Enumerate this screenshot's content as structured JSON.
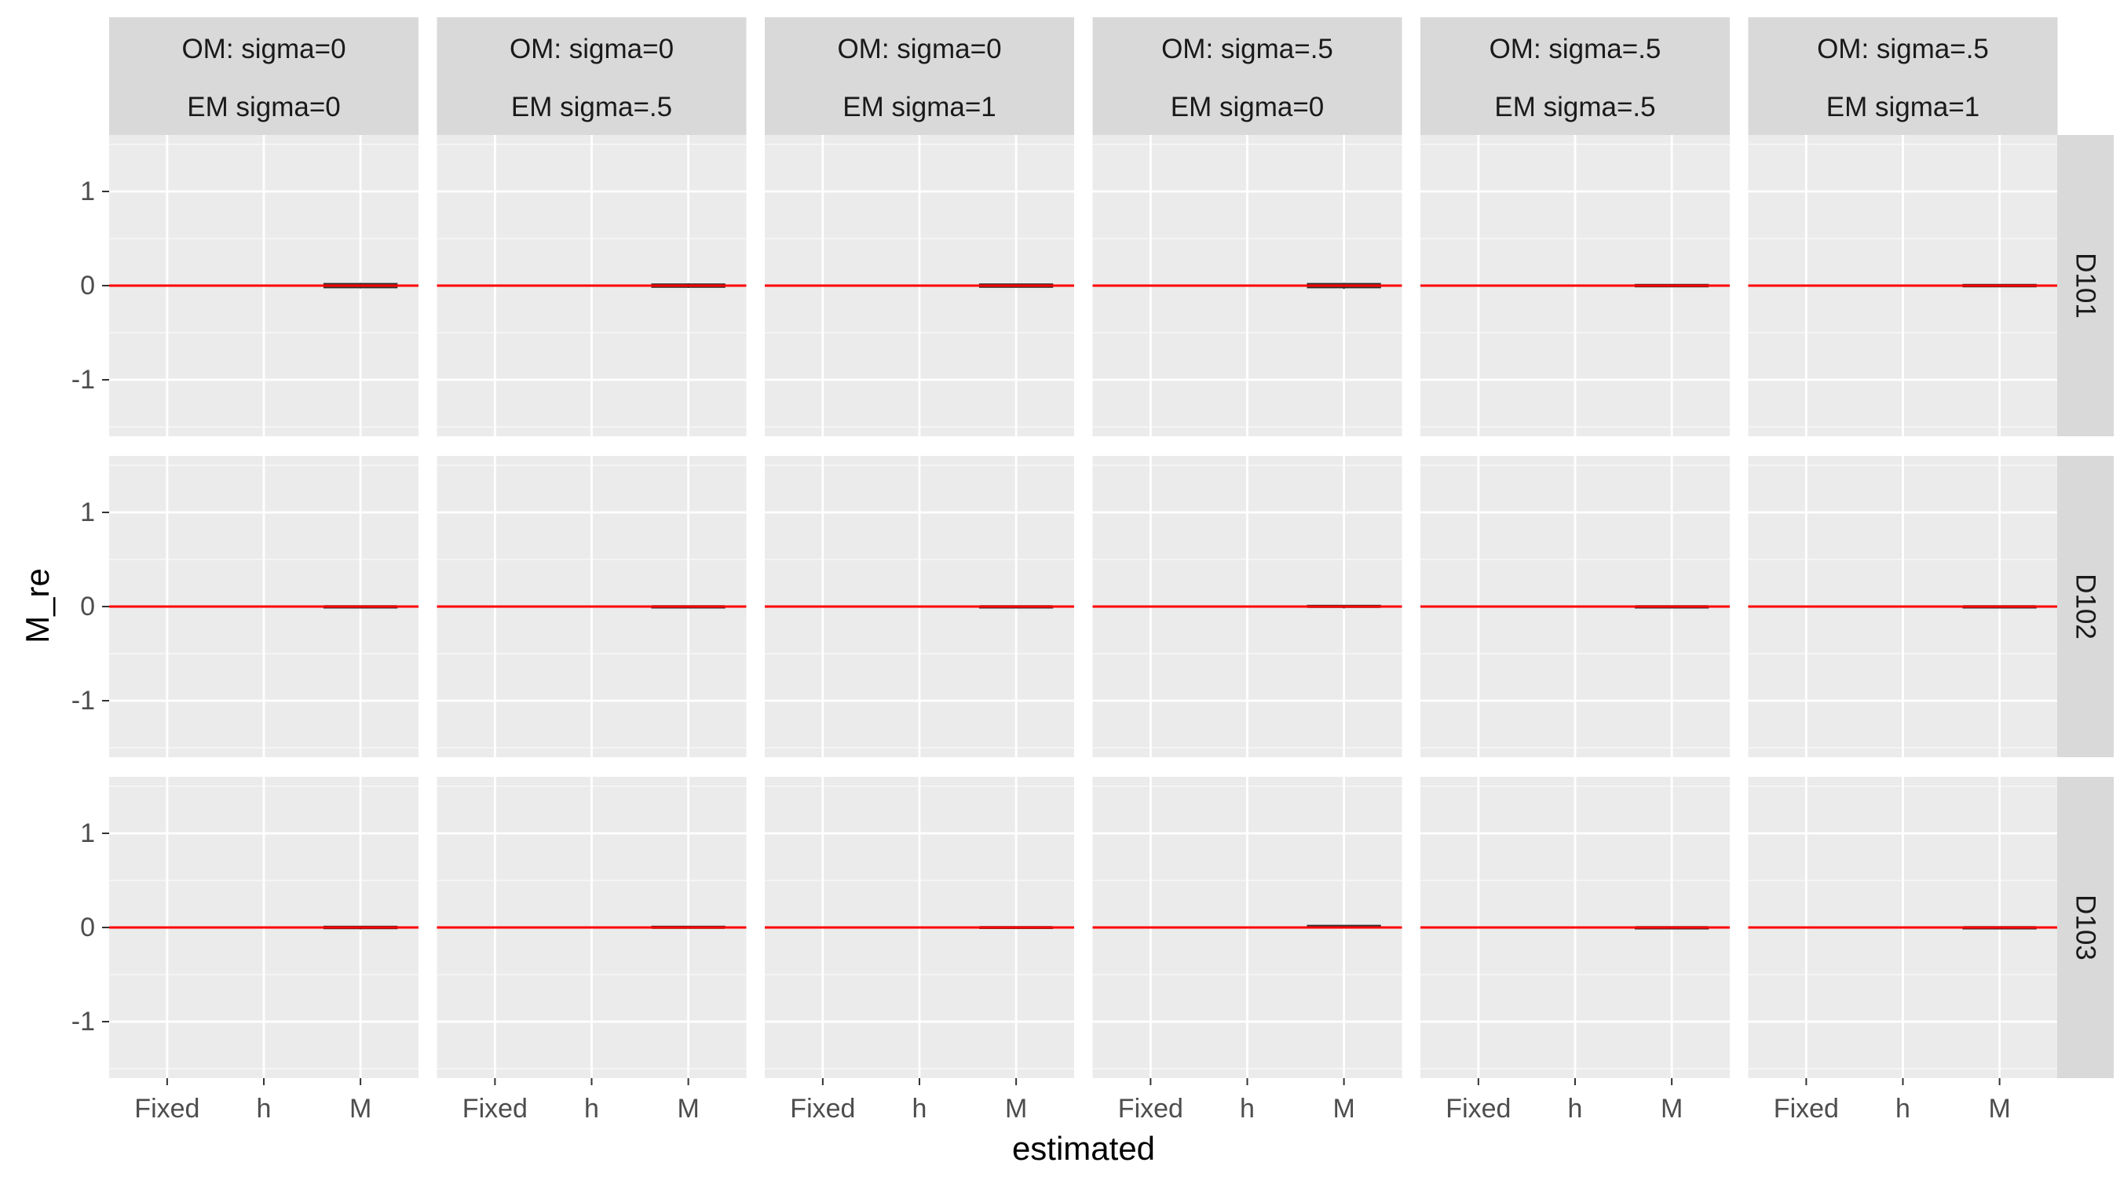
{
  "chart_data": {
    "type": "boxplot",
    "xlabel": "estimated",
    "ylabel": "M_re",
    "x_categories": [
      "Fixed",
      "h",
      "M"
    ],
    "y_ticks": [
      -1,
      0,
      1
    ],
    "ylim": [
      -1.6,
      1.6
    ],
    "reference_line": {
      "y": 0,
      "color": "#ff0000"
    },
    "facet_columns": [
      {
        "om": "OM: sigma=0",
        "em": "EM sigma=0"
      },
      {
        "om": "OM: sigma=0",
        "em": "EM sigma=.5"
      },
      {
        "om": "OM: sigma=0",
        "em": "EM sigma=1"
      },
      {
        "om": "OM: sigma=.5",
        "em": "EM sigma=0"
      },
      {
        "om": "OM: sigma=.5",
        "em": "EM sigma=.5"
      },
      {
        "om": "OM: sigma=.5",
        "em": "EM sigma=1"
      }
    ],
    "facet_rows": [
      "D101",
      "D102",
      "D103"
    ],
    "boxes": [
      [
        {
          "category": "M",
          "q1": -0.02,
          "median": 0.0,
          "q3": 0.02,
          "whisker_low": -0.03,
          "whisker_high": 0.03
        },
        {
          "category": "M",
          "q1": -0.015,
          "median": 0.0,
          "q3": 0.015,
          "whisker_low": -0.025,
          "whisker_high": 0.025
        },
        {
          "category": "M",
          "q1": -0.015,
          "median": 0.0,
          "q3": 0.015,
          "whisker_low": -0.02,
          "whisker_high": 0.02
        },
        {
          "category": "M",
          "q1": -0.02,
          "median": 0.0,
          "q3": 0.02,
          "whisker_low": -0.035,
          "whisker_high": 0.03
        },
        {
          "category": "M",
          "q1": -0.01,
          "median": 0.0,
          "q3": 0.01,
          "whisker_low": -0.015,
          "whisker_high": 0.015
        },
        {
          "category": "M",
          "q1": -0.01,
          "median": 0.0,
          "q3": 0.01,
          "whisker_low": -0.015,
          "whisker_high": 0.015
        }
      ],
      [
        {
          "category": "M",
          "q1": -0.01,
          "median": 0.0,
          "q3": 0.0,
          "whisker_low": -0.02,
          "whisker_high": 0.005
        },
        {
          "category": "M",
          "q1": -0.005,
          "median": 0.0,
          "q3": 0.0,
          "whisker_low": -0.01,
          "whisker_high": 0.005
        },
        {
          "category": "M",
          "q1": -0.005,
          "median": 0.0,
          "q3": 0.0,
          "whisker_low": -0.01,
          "whisker_high": 0.005
        },
        {
          "category": "M",
          "q1": -0.005,
          "median": 0.0,
          "q3": 0.01,
          "whisker_low": -0.02,
          "whisker_high": 0.01
        },
        {
          "category": "M",
          "q1": -0.005,
          "median": 0.0,
          "q3": 0.0,
          "whisker_low": -0.01,
          "whisker_high": 0.005
        },
        {
          "category": "M",
          "q1": -0.005,
          "median": 0.0,
          "q3": 0.0,
          "whisker_low": -0.01,
          "whisker_high": 0.005
        }
      ],
      [
        {
          "category": "M",
          "q1": -0.01,
          "median": 0.0,
          "q3": 0.01,
          "whisker_low": -0.02,
          "whisker_high": 0.01
        },
        {
          "category": "M",
          "q1": -0.005,
          "median": 0.0,
          "q3": 0.01,
          "whisker_low": -0.01,
          "whisker_high": 0.01
        },
        {
          "category": "M",
          "q1": -0.005,
          "median": 0.0,
          "q3": 0.005,
          "whisker_low": -0.01,
          "whisker_high": 0.01
        },
        {
          "category": "M",
          "q1": 0.0,
          "median": 0.01,
          "q3": 0.02,
          "whisker_low": 0.0,
          "whisker_high": 0.025
        },
        {
          "category": "M",
          "q1": -0.005,
          "median": 0.0,
          "q3": 0.0,
          "whisker_low": -0.01,
          "whisker_high": 0.005
        },
        {
          "category": "M",
          "q1": -0.005,
          "median": 0.0,
          "q3": 0.0,
          "whisker_low": -0.01,
          "whisker_high": 0.005
        }
      ]
    ],
    "colors": {
      "panel_background": "#ebebeb",
      "strip_background": "#d9d9d9",
      "grid": "#ffffff",
      "reference_line": "#ff0000",
      "box_outline": "#333333"
    }
  }
}
